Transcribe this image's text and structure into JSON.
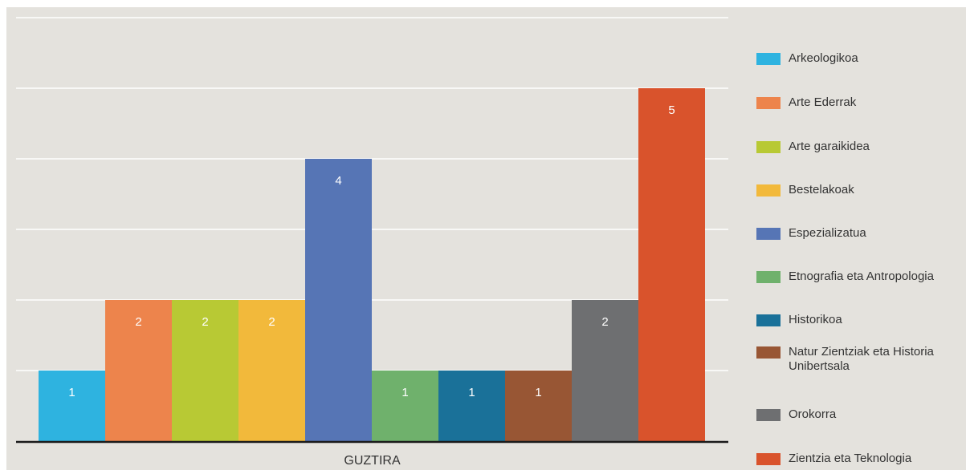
{
  "chart_data": {
    "type": "bar",
    "categories": [
      "GUZTIRA"
    ],
    "series": [
      {
        "name": "Arkeologikoa",
        "values": [
          1
        ],
        "color": "#2eb3e0"
      },
      {
        "name": "Arte Ederrak",
        "values": [
          2
        ],
        "color": "#ed844c"
      },
      {
        "name": "Arte garaikidea",
        "values": [
          2
        ],
        "color": "#b8c934"
      },
      {
        "name": "Bestelakoak",
        "values": [
          2
        ],
        "color": "#f2b93b"
      },
      {
        "name": "Espezializatua",
        "values": [
          4
        ],
        "color": "#5675b5"
      },
      {
        "name": "Etnografia eta Antropologia",
        "values": [
          1
        ],
        "color": "#6fb16c"
      },
      {
        "name": "Historikoa",
        "values": [
          1
        ],
        "color": "#1a7199"
      },
      {
        "name": "Natur Zientziak eta Historia Unibertsala",
        "values": [
          1
        ],
        "color": "#985634"
      },
      {
        "name": "Orokorra",
        "values": [
          2
        ],
        "color": "#6e6f71"
      },
      {
        "name": "Zientzia eta Teknologia",
        "values": [
          5
        ],
        "color": "#d9532c"
      }
    ],
    "ylim": [
      0,
      6
    ],
    "grid": true,
    "legend": "right",
    "data_labels": true
  }
}
